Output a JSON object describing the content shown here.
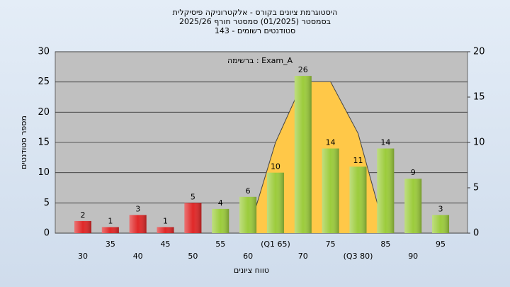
{
  "chart_data": {
    "type": "bar",
    "title_lines": [
      "היסטוגרמת ציונים בקורס - אלקטרוניקה פיסיקלית",
      "בסמסטר  (01/2025)  סמסטר חורף 2025/26",
      "סטודנטים רשומים - 143"
    ],
    "annotation": "ברשימה : Exam_A",
    "xlabel": "טווח ציונים",
    "ylabel": "מספר סטודנטים",
    "categories": [
      "30",
      "35",
      "40",
      "45",
      "50",
      "55",
      "60",
      "(Q1 65)",
      "70",
      "75",
      "(Q3 80)",
      "85",
      "90",
      "95"
    ],
    "values": [
      2,
      1,
      3,
      1,
      5,
      4,
      6,
      10,
      26,
      14,
      11,
      14,
      9,
      3
    ],
    "colors": [
      "#e02828",
      "#e02828",
      "#e02828",
      "#e02828",
      "#e02828",
      "#9ccc3c",
      "#9ccc3c",
      "#9ccc3c",
      "#9ccc3c",
      "#9ccc3c",
      "#9ccc3c",
      "#9ccc3c",
      "#9ccc3c",
      "#9ccc3c"
    ],
    "ylim": [
      0,
      30
    ],
    "yticks": [
      0,
      5,
      10,
      15,
      20,
      25,
      30
    ],
    "y2lim": [
      0,
      20
    ],
    "y2ticks": [
      0,
      5,
      10,
      15,
      20
    ],
    "overlay": {
      "type": "area",
      "axis": "y2",
      "color": "#ffc848",
      "line_color": "#444444",
      "values": [
        null,
        null,
        null,
        null,
        null,
        null,
        0,
        10,
        16.7,
        16.7,
        11,
        0,
        null,
        null
      ]
    },
    "grid": true
  }
}
